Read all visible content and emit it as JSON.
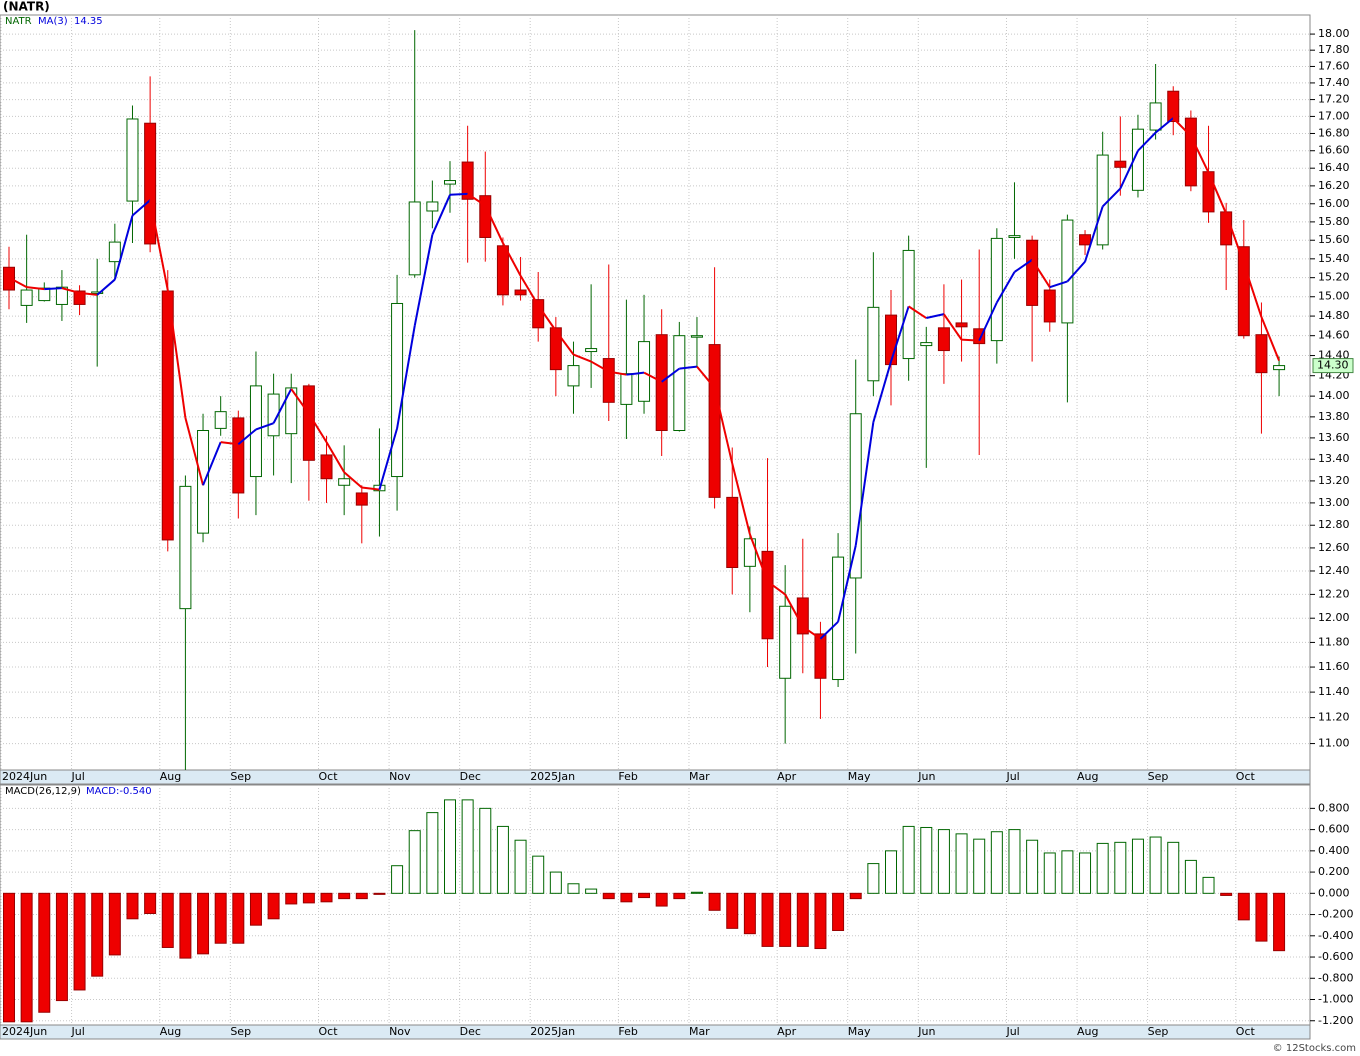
{
  "chart_data": [
    {
      "type": "candlestick",
      "title": "(NATR)",
      "symbol": "NATR",
      "categories": [
        "2024Jun",
        null,
        null,
        null,
        "Jul",
        null,
        null,
        null,
        null,
        "Aug",
        null,
        null,
        null,
        "Sep",
        null,
        null,
        null,
        null,
        "Oct",
        null,
        null,
        null,
        "Nov",
        null,
        null,
        null,
        "Dec",
        null,
        null,
        null,
        "2025Jan",
        null,
        null,
        null,
        null,
        "Feb",
        null,
        null,
        null,
        "Mar",
        null,
        null,
        null,
        null,
        "Apr",
        null,
        null,
        null,
        "May",
        null,
        null,
        null,
        "Jun",
        null,
        null,
        null,
        null,
        "Jul",
        null,
        null,
        null,
        "Aug",
        null,
        null,
        null,
        "Sep",
        null,
        null,
        null,
        null,
        "Oct",
        null,
        null
      ],
      "open": [
        15.31,
        14.91,
        14.96,
        14.92,
        15.06,
        15.04,
        15.37,
        16.03,
        16.92,
        15.06,
        12.08,
        12.73,
        13.69,
        13.79,
        13.24,
        13.62,
        13.64,
        14.1,
        13.44,
        13.16,
        13.09,
        13.11,
        13.24,
        15.23,
        15.92,
        16.22,
        16.47,
        16.09,
        15.54,
        15.07,
        14.97,
        14.68,
        14.1,
        14.44,
        14.37,
        13.92,
        13.95,
        14.61,
        13.67,
        14.59,
        14.51,
        13.05,
        12.44,
        12.57,
        11.51,
        12.17,
        11.87,
        11.5,
        12.34,
        14.15,
        14.81,
        14.37,
        14.5,
        14.68,
        14.73,
        14.67,
        14.55,
        15.63,
        15.6,
        15.07,
        14.73,
        15.66,
        15.55,
        16.48,
        16.15,
        16.84,
        17.3,
        16.98,
        16.36,
        15.91,
        15.53,
        14.61,
        14.26
      ],
      "high": [
        15.53,
        15.66,
        15.15,
        15.28,
        15.12,
        15.4,
        15.78,
        17.13,
        17.48,
        15.28,
        13.25,
        13.83,
        14.0,
        13.86,
        14.44,
        14.22,
        14.22,
        14.12,
        13.62,
        13.53,
        13.16,
        13.69,
        15.23,
        18.05,
        16.26,
        16.48,
        16.89,
        16.59,
        15.63,
        15.42,
        15.26,
        14.79,
        14.54,
        15.13,
        15.34,
        14.97,
        15.02,
        14.87,
        14.74,
        14.79,
        15.31,
        13.51,
        12.79,
        13.41,
        12.45,
        12.68,
        11.97,
        12.73,
        14.36,
        15.47,
        15.07,
        15.65,
        14.69,
        15.13,
        15.18,
        15.5,
        15.73,
        16.24,
        15.65,
        15.18,
        15.88,
        15.71,
        16.82,
        17.0,
        17.02,
        17.63,
        17.36,
        17.07,
        16.89,
        16.01,
        15.82,
        14.94,
        14.39
      ],
      "low": [
        14.87,
        14.73,
        14.95,
        14.75,
        14.81,
        14.29,
        15.18,
        15.57,
        15.47,
        12.57,
        10.7,
        12.65,
        13.62,
        12.86,
        12.89,
        13.25,
        13.18,
        13.02,
        13.0,
        12.89,
        12.64,
        12.7,
        12.93,
        15.2,
        15.73,
        15.9,
        15.36,
        15.37,
        14.91,
        14.96,
        14.54,
        14.0,
        13.83,
        14.08,
        13.76,
        13.59,
        13.83,
        13.43,
        13.66,
        14.28,
        12.95,
        12.2,
        12.05,
        11.6,
        11.0,
        11.55,
        11.19,
        11.44,
        11.71,
        14.0,
        13.91,
        14.15,
        13.32,
        14.12,
        14.34,
        13.44,
        14.32,
        15.4,
        14.34,
        14.64,
        13.94,
        15.44,
        15.5,
        16.09,
        16.07,
        16.73,
        16.78,
        16.14,
        15.79,
        15.07,
        14.57,
        13.64,
        14.0
      ],
      "close": [
        15.07,
        15.07,
        15.09,
        15.1,
        14.92,
        15.05,
        15.58,
        16.97,
        15.56,
        12.67,
        13.15,
        13.67,
        13.85,
        13.09,
        14.1,
        14.02,
        14.08,
        13.39,
        13.22,
        13.22,
        12.98,
        13.16,
        14.93,
        16.02,
        16.02,
        16.26,
        16.05,
        15.63,
        15.02,
        15.02,
        14.68,
        14.26,
        14.3,
        14.47,
        13.94,
        14.22,
        14.54,
        13.67,
        14.6,
        14.6,
        13.05,
        12.43,
        12.68,
        11.83,
        12.1,
        11.87,
        11.51,
        12.52,
        13.83,
        14.89,
        14.31,
        15.49,
        14.53,
        14.45,
        14.69,
        14.52,
        15.62,
        15.65,
        14.91,
        14.74,
        15.82,
        15.55,
        16.55,
        16.41,
        16.85,
        17.16,
        16.94,
        16.2,
        15.91,
        15.55,
        14.6,
        14.23,
        14.3
      ],
      "last_close_label": "14.30",
      "up_color": "#006600",
      "down_color": "#ee0000",
      "ma": {
        "name": "MA(3)",
        "up_color": "#0000dd",
        "down_color": "#ee0000",
        "values": [
          15.2,
          15.1,
          15.08,
          15.09,
          15.04,
          15.02,
          15.18,
          15.87,
          16.04,
          15.07,
          13.79,
          13.16,
          13.56,
          13.54,
          13.68,
          13.74,
          14.07,
          13.83,
          13.56,
          13.28,
          13.14,
          13.12,
          13.69,
          14.7,
          15.66,
          16.1,
          16.11,
          15.98,
          15.57,
          15.22,
          14.91,
          14.65,
          14.41,
          14.34,
          14.24,
          14.21,
          14.23,
          14.14,
          14.27,
          14.29,
          14.08,
          13.36,
          12.72,
          12.31,
          12.2,
          11.93,
          11.83,
          11.97,
          12.62,
          13.75,
          14.34,
          14.9,
          14.78,
          14.82,
          14.56,
          14.55,
          14.94,
          15.26,
          15.39,
          15.1,
          15.16,
          15.37,
          15.97,
          16.17,
          16.6,
          16.81,
          16.98,
          16.77,
          16.35,
          15.89,
          15.35,
          14.79,
          14.35
        ]
      },
      "ylim": [
        10.8,
        18.24
      ],
      "log": true,
      "grid": true,
      "yticks": [
        {
          "value": 11,
          "label": "11.00"
        },
        {
          "value": 11.2,
          "label": "11.20"
        },
        {
          "value": 11.4,
          "label": "11.40"
        },
        {
          "value": 11.6,
          "label": "11.60"
        },
        {
          "value": 11.8,
          "label": "11.80"
        },
        {
          "value": 12,
          "label": "12.00"
        },
        {
          "value": 12.2,
          "label": "12.20"
        },
        {
          "value": 12.4,
          "label": "12.40"
        },
        {
          "value": 12.6,
          "label": "12.60"
        },
        {
          "value": 12.8,
          "label": "12.80"
        },
        {
          "value": 13,
          "label": "13.00"
        },
        {
          "value": 13.2,
          "label": "13.20"
        },
        {
          "value": 13.4,
          "label": "13.40"
        },
        {
          "value": 13.6,
          "label": "13.60"
        },
        {
          "value": 13.8,
          "label": "13.80"
        },
        {
          "value": 14,
          "label": "14.00"
        },
        {
          "value": 14.2,
          "label": "14.20"
        },
        {
          "value": 14.4,
          "label": "14.40"
        },
        {
          "value": 14.6,
          "label": "14.60"
        },
        {
          "value": 14.8,
          "label": "14.80"
        },
        {
          "value": 15,
          "label": "15.00"
        },
        {
          "value": 15.2,
          "label": "15.20"
        },
        {
          "value": 15.4,
          "label": "15.40"
        },
        {
          "value": 15.6,
          "label": "15.60"
        },
        {
          "value": 15.8,
          "label": "15.80"
        },
        {
          "value": 16,
          "label": "16.00"
        },
        {
          "value": 16.2,
          "label": "16.20"
        },
        {
          "value": 16.4,
          "label": "16.40"
        },
        {
          "value": 16.6,
          "label": "16.60"
        },
        {
          "value": 16.8,
          "label": "16.80"
        },
        {
          "value": 17,
          "label": "17.00"
        },
        {
          "value": 17.2,
          "label": "17.20"
        },
        {
          "value": 17.4,
          "label": "17.40"
        },
        {
          "value": 17.6,
          "label": "17.60"
        },
        {
          "value": 17.8,
          "label": "17.80"
        },
        {
          "value": 18,
          "label": "18.00"
        }
      ]
    },
    {
      "type": "macd",
      "title": "MACD(26,12,9)",
      "last_label": "MACD:-0.540",
      "categories": [
        "2024Jun",
        null,
        null,
        null,
        "Jul",
        null,
        null,
        null,
        null,
        "Aug",
        null,
        null,
        null,
        "Sep",
        null,
        null,
        null,
        null,
        "Oct",
        null,
        null,
        null,
        "Nov",
        null,
        null,
        null,
        "Dec",
        null,
        null,
        null,
        "2025Jan",
        null,
        null,
        null,
        null,
        "Feb",
        null,
        null,
        null,
        "Mar",
        null,
        null,
        null,
        null,
        "Apr",
        null,
        null,
        null,
        "May",
        null,
        null,
        null,
        "Jun",
        null,
        null,
        null,
        null,
        "Jul",
        null,
        null,
        null,
        "Aug",
        null,
        null,
        null,
        "Sep",
        null,
        null,
        null,
        null,
        "Oct",
        null,
        null
      ],
      "values": [
        -1.21,
        -1.21,
        -1.12,
        -1.01,
        -0.91,
        -0.78,
        -0.58,
        -0.24,
        -0.19,
        -0.51,
        -0.61,
        -0.57,
        -0.47,
        -0.47,
        -0.3,
        -0.24,
        -0.1,
        -0.09,
        -0.08,
        -0.05,
        -0.05,
        -0.01,
        0.26,
        0.59,
        0.76,
        0.88,
        0.88,
        0.8,
        0.63,
        0.5,
        0.35,
        0.2,
        0.09,
        0.04,
        -0.05,
        -0.08,
        -0.04,
        -0.12,
        -0.05,
        0.01,
        -0.16,
        -0.33,
        -0.38,
        -0.5,
        -0.5,
        -0.5,
        -0.52,
        -0.35,
        -0.05,
        0.28,
        0.4,
        0.63,
        0.62,
        0.6,
        0.56,
        0.51,
        0.58,
        0.6,
        0.5,
        0.38,
        0.4,
        0.38,
        0.47,
        0.48,
        0.51,
        0.53,
        0.48,
        0.31,
        0.15,
        -0.02,
        -0.25,
        -0.45,
        -0.54
      ],
      "up_color": "#006600",
      "down_color": "#ee0000",
      "ylim": [
        -1.24,
        1.02
      ],
      "grid": true,
      "yticks": [
        {
          "value": -1.2,
          "label": "-1.200"
        },
        {
          "value": -1,
          "label": "-1.000"
        },
        {
          "value": -0.8,
          "label": "-0.800"
        },
        {
          "value": -0.6,
          "label": "-0.600"
        },
        {
          "value": -0.4,
          "label": "-0.400"
        },
        {
          "value": -0.2,
          "label": "-0.200"
        },
        {
          "value": 0,
          "label": "0.000"
        },
        {
          "value": 0.2,
          "label": "0.200"
        },
        {
          "value": 0.4,
          "label": "0.400"
        },
        {
          "value": 0.6,
          "label": "0.600"
        },
        {
          "value": 0.8,
          "label": "0.800"
        }
      ]
    }
  ],
  "watermark": "© 12Stocks.com"
}
